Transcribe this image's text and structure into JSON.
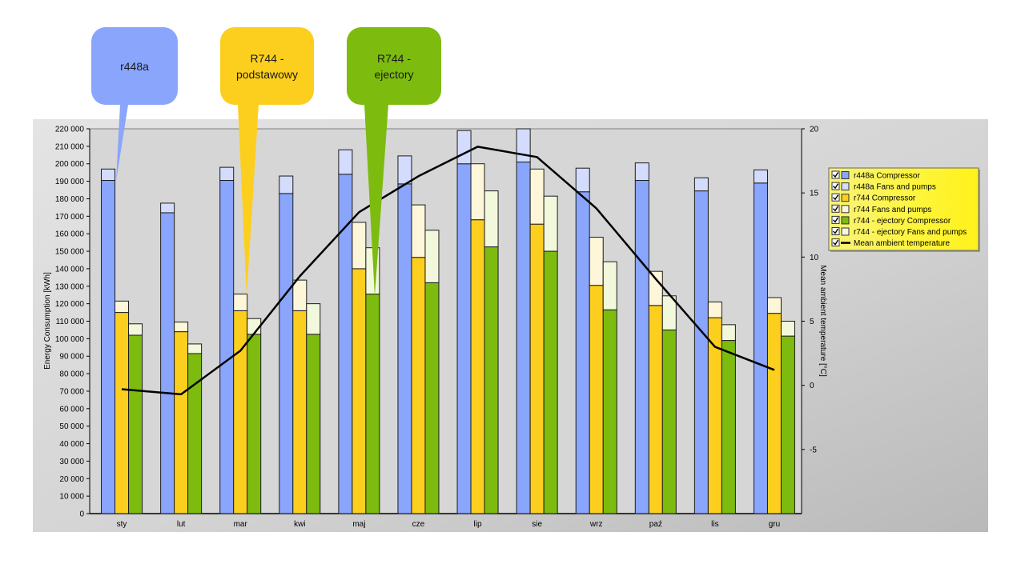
{
  "callouts": [
    {
      "lines": [
        "r448a"
      ],
      "color": "#8aa5fc"
    },
    {
      "lines": [
        "R744 -",
        "podstawowy"
      ],
      "color": "#fccf1f"
    },
    {
      "lines": [
        "R744 -",
        "ejectory"
      ],
      "color": "#7dbb0f"
    }
  ],
  "chart_data": {
    "type": "bar",
    "categories": [
      "sty",
      "lut",
      "mar",
      "kwi",
      "maj",
      "cze",
      "lip",
      "sie",
      "wrz",
      "paź",
      "lis",
      "gru"
    ],
    "ylabel": "Energy Consumption [kWh]",
    "y2label": "Mean ambient temperature [°C]",
    "ylim": [
      0,
      220000
    ],
    "y2lim": [
      -10,
      20
    ],
    "y_ticks": [
      "0",
      "10 000",
      "20 000",
      "30 000",
      "40 000",
      "50 000",
      "60 000",
      "70 000",
      "80 000",
      "90 000",
      "100 000",
      "110 000",
      "120 000",
      "130 000",
      "140 000",
      "150 000",
      "160 000",
      "170 000",
      "180 000",
      "190 000",
      "200 000",
      "210 000",
      "220 000"
    ],
    "y2_ticks": [
      "-5",
      "0",
      "5",
      "10",
      "15",
      "20"
    ],
    "series": [
      {
        "name": "r448a Compressor",
        "group": 0,
        "color": "#8aa5fc",
        "values": [
          190500,
          172000,
          190500,
          183000,
          194000,
          188500,
          200000,
          201000,
          184000,
          190500,
          184500,
          189000
        ]
      },
      {
        "name": "r448a Fans and pumps",
        "group": 0,
        "color": "#d3dcfc",
        "values": [
          6500,
          5500,
          7500,
          10000,
          14000,
          16000,
          19000,
          19000,
          13500,
          10000,
          7500,
          7500
        ]
      },
      {
        "name": "r744 Compressor",
        "group": 1,
        "color": "#fccf1f",
        "values": [
          115000,
          104000,
          116000,
          116000,
          140000,
          146500,
          168000,
          165500,
          130500,
          119000,
          112000,
          114500
        ]
      },
      {
        "name": "r744 Fans and pumps",
        "group": 1,
        "color": "#fdf6d9",
        "values": [
          6500,
          5500,
          9500,
          17500,
          26500,
          30000,
          32000,
          31500,
          27500,
          19500,
          9000,
          9000
        ]
      },
      {
        "name": "r744 - ejectory Compressor",
        "group": 2,
        "color": "#7dbb0f",
        "values": [
          102000,
          91500,
          102500,
          102500,
          125500,
          132000,
          152500,
          150000,
          116500,
          105000,
          99000,
          101500
        ]
      },
      {
        "name": "r744 - ejectory Fans and pumps",
        "group": 2,
        "color": "#f1f8db",
        "values": [
          6500,
          5500,
          9000,
          17500,
          26500,
          30000,
          32000,
          31500,
          27500,
          19500,
          9000,
          8500
        ]
      }
    ],
    "line": {
      "name": "Mean ambient temperature",
      "color": "#000000",
      "values": [
        -0.3,
        -0.7,
        2.7,
        8.5,
        13.5,
        16.3,
        18.6,
        17.8,
        13.8,
        8.3,
        3.0,
        1.2
      ]
    },
    "legend_position": "top-right"
  }
}
